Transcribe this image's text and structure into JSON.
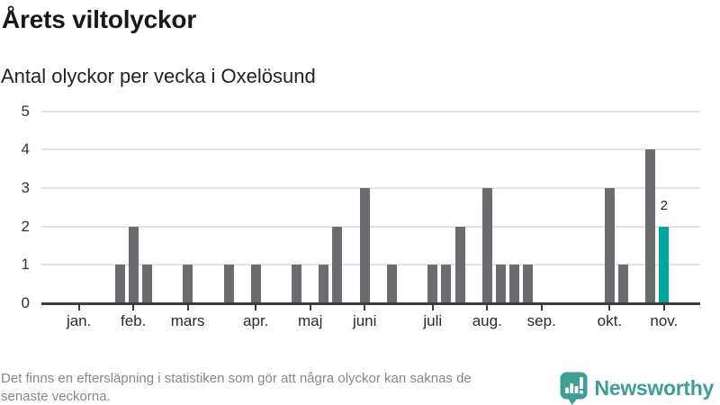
{
  "header": {
    "title": "Årets viltolyckor",
    "subtitle": "Antal olyckor per vecka i Oxelösund"
  },
  "chart_data": {
    "type": "bar",
    "title": "Årets viltolyckor",
    "subtitle": "Antal olyckor per vecka i Oxelösund",
    "x_unit": "week-of-year (one bar per week)",
    "y_axis": {
      "ticks": [
        0,
        1,
        2,
        3,
        4,
        5
      ],
      "min": 0,
      "max": 5,
      "grid": true
    },
    "x_axis": {
      "month_ticks": [
        {
          "label": "jan.",
          "slot": 4
        },
        {
          "label": "feb.",
          "slot": 8
        },
        {
          "label": "mars",
          "slot": 12
        },
        {
          "label": "apr.",
          "slot": 17
        },
        {
          "label": "maj",
          "slot": 21
        },
        {
          "label": "juni",
          "slot": 25
        },
        {
          "label": "juli",
          "slot": 30
        },
        {
          "label": "aug.",
          "slot": 34
        },
        {
          "label": "sep.",
          "slot": 38
        },
        {
          "label": "okt.",
          "slot": 43
        },
        {
          "label": "nov.",
          "slot": 47
        }
      ]
    },
    "bars": [
      {
        "slot": 7,
        "value": 1
      },
      {
        "slot": 8,
        "value": 2
      },
      {
        "slot": 9,
        "value": 1
      },
      {
        "slot": 12,
        "value": 1
      },
      {
        "slot": 15,
        "value": 1
      },
      {
        "slot": 17,
        "value": 1
      },
      {
        "slot": 20,
        "value": 1
      },
      {
        "slot": 22,
        "value": 1
      },
      {
        "slot": 23,
        "value": 2
      },
      {
        "slot": 25,
        "value": 3
      },
      {
        "slot": 27,
        "value": 1
      },
      {
        "slot": 30,
        "value": 1
      },
      {
        "slot": 31,
        "value": 1
      },
      {
        "slot": 32,
        "value": 2
      },
      {
        "slot": 34,
        "value": 3
      },
      {
        "slot": 35,
        "value": 1
      },
      {
        "slot": 36,
        "value": 1
      },
      {
        "slot": 37,
        "value": 1
      },
      {
        "slot": 43,
        "value": 3
      },
      {
        "slot": 44,
        "value": 1
      },
      {
        "slot": 46,
        "value": 4
      },
      {
        "slot": 47,
        "value": 2,
        "highlight": true,
        "label": "2"
      }
    ],
    "colors": {
      "bar": "#6b6b70",
      "highlight": "#00a69c",
      "grid": "#e3e3e3",
      "axis": "#3d3d3d",
      "tick_label": "#2b2b2b",
      "annotation": "#222222"
    },
    "legend": "none"
  },
  "footer": {
    "note_line1": "Det finns en eftersläpning i statistiken som gör att några olyckor kan saknas de",
    "note_line2": "senaste veckorna.",
    "brand_name": "Newsworthy",
    "brand_color": "#3f9e96"
  }
}
